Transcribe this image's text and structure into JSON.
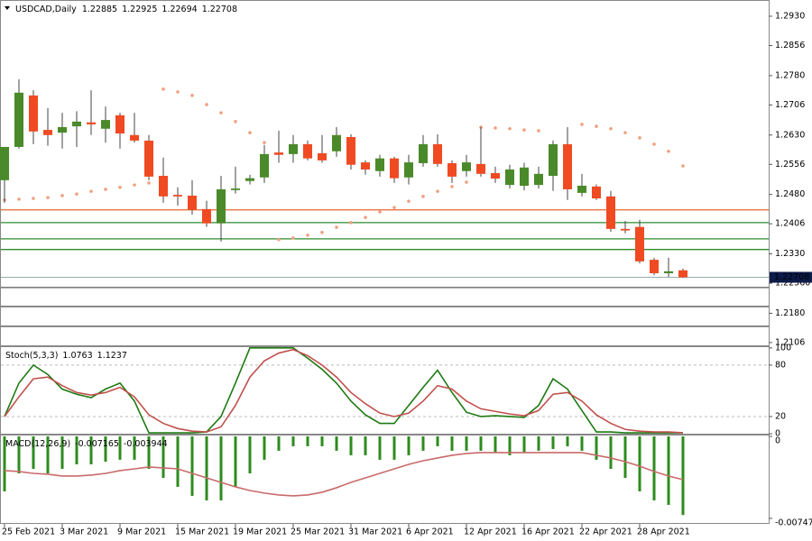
{
  "chart_data": [
    {
      "type": "candlestick",
      "title": "USDCAD,Daily",
      "categories": [
        "25 Feb 2021",
        null,
        null,
        null,
        "3 Mar 2021",
        null,
        null,
        null,
        "9 Mar 2021",
        null,
        null,
        null,
        "15 Mar 2021",
        null,
        null,
        null,
        "19 Mar 2021",
        null,
        null,
        null,
        "25 Mar 2021",
        null,
        null,
        null,
        "31 Mar 2021",
        null,
        null,
        null,
        "6 Apr 2021",
        null,
        null,
        null,
        "12 Apr 2021",
        null,
        null,
        null,
        "16 Apr 2021",
        null,
        null,
        null,
        "22 Apr 2021",
        null,
        null,
        null,
        "28 Apr 2021",
        null,
        null,
        null
      ],
      "open": [
        1.2516,
        1.26,
        1.273,
        1.2643,
        1.2636,
        1.2652,
        1.2662,
        1.2646,
        1.268,
        1.263,
        1.2616,
        1.2527,
        1.2479,
        1.2477,
        1.2443,
        1.2407,
        1.2491,
        1.2514,
        1.2523,
        1.2586,
        1.2582,
        1.2607,
        1.2584,
        1.2589,
        1.2625,
        1.2561,
        1.2539,
        1.2571,
        1.2523,
        1.2559,
        1.2607,
        1.2559,
        1.2539,
        1.2557,
        1.2534,
        1.2504,
        1.2502,
        1.2504,
        1.2527,
        1.2607,
        1.2484,
        1.25,
        1.2475,
        1.2393,
        1.2398,
        1.2315,
        1.2281,
        1.22885
      ],
      "high": [
        1.26,
        1.2771,
        1.2743,
        1.2698,
        1.2686,
        1.269,
        1.2743,
        1.2702,
        1.2686,
        1.2686,
        1.263,
        1.2573,
        1.2498,
        1.2516,
        1.2464,
        1.2527,
        1.255,
        1.253,
        1.2605,
        1.2641,
        1.263,
        1.2616,
        1.263,
        1.265,
        1.2632,
        1.2566,
        1.258,
        1.2575,
        1.258,
        1.263,
        1.2632,
        1.2566,
        1.258,
        1.265,
        1.255,
        1.2555,
        1.256,
        1.255,
        1.2616,
        1.265,
        1.2532,
        1.2505,
        1.2489,
        1.2413,
        1.2416,
        1.232,
        1.232,
        1.22925
      ],
      "low": [
        1.2459,
        1.2596,
        1.2607,
        1.2603,
        1.2596,
        1.26,
        1.263,
        1.2611,
        1.2596,
        1.2611,
        1.2516,
        1.2459,
        1.2452,
        1.2429,
        1.2398,
        1.2361,
        1.2482,
        1.2505,
        1.2509,
        1.256,
        1.256,
        1.2566,
        1.256,
        1.2575,
        1.2543,
        1.253,
        1.2525,
        1.2509,
        1.2505,
        1.255,
        1.255,
        1.2509,
        1.2525,
        1.2525,
        1.2509,
        1.2495,
        1.249,
        1.2495,
        1.2489,
        1.2466,
        1.2475,
        1.2466,
        1.2386,
        1.2382,
        1.2306,
        1.2276,
        1.2272,
        1.22694
      ],
      "close": [
        1.26,
        1.2737,
        1.2639,
        1.263,
        1.265,
        1.2664,
        1.2657,
        1.2668,
        1.2634,
        1.2616,
        1.2525,
        1.2475,
        1.2475,
        1.2441,
        1.2407,
        1.2493,
        1.2495,
        1.2521,
        1.2582,
        1.258,
        1.2607,
        1.2571,
        1.2566,
        1.263,
        1.2555,
        1.2543,
        1.2571,
        1.2521,
        1.2561,
        1.2607,
        1.2557,
        1.2525,
        1.2561,
        1.2532,
        1.252,
        1.2543,
        1.2548,
        1.2532,
        1.2607,
        1.2493,
        1.2502,
        1.247,
        1.2393,
        1.2389,
        1.2311,
        1.2281,
        1.2286,
        1.22708
      ],
      "up_color": "#4a8a2a",
      "down_color": "#f04a23",
      "sar": {
        "color": "#f0a080",
        "values": [
          1.2466,
          1.2468,
          1.247,
          1.2472,
          1.2477,
          1.2481,
          1.2488,
          1.2493,
          1.2498,
          1.2504,
          1.2509,
          1.2746,
          1.2739,
          1.273,
          1.2707,
          1.2686,
          1.2664,
          1.2636,
          1.2611,
          1.2366,
          1.237,
          1.2377,
          1.2384,
          1.2397,
          1.2409,
          1.2422,
          1.2436,
          1.2447,
          1.2463,
          1.2475,
          1.2488,
          1.25,
          1.2511,
          1.265,
          1.2648,
          1.2646,
          1.2643,
          1.2641,
          null,
          null,
          1.2657,
          1.2652,
          1.2646,
          1.2636,
          1.2623,
          1.2607,
          1.2589,
          1.2552
        ]
      },
      "levels": [
        {
          "value": 1.2441,
          "color": "#e8692a"
        },
        {
          "value": 1.2409,
          "color": "#2e8b2e"
        },
        {
          "value": 1.2368,
          "color": "#2e8b2e"
        },
        {
          "value": 1.2341,
          "color": "#2e8b2e"
        },
        {
          "value": 1.2245,
          "color": "#555555"
        },
        {
          "value": 1.2197,
          "color": "#555555"
        },
        {
          "value": 1.2147,
          "color": "#555555"
        }
      ],
      "ylim": [
        1.2099,
        1.2971
      ],
      "yticks": [
        {
          "value": 1.293,
          "label": "1.2930"
        },
        1.2856,
        {
          "value": 1.278,
          "label": "1.2780"
        },
        1.2706,
        {
          "value": 1.263,
          "label": "1.2630"
        },
        1.2556,
        {
          "value": 1.248,
          "label": "1.2480"
        },
        1.2406,
        {
          "value": 1.233,
          "label": "1.2330"
        },
        {
          "value": 1.2256,
          "label": "1.22560"
        },
        {
          "value": 1.218,
          "label": "1.2180"
        },
        1.2106
      ]
    },
    {
      "type": "line",
      "title": "Stoch(5,3,3)",
      "series": [
        {
          "color": "#1d7a12",
          "values": [
            20,
            59,
            80,
            69,
            52,
            46,
            42,
            52,
            59,
            38,
            1,
            1,
            1,
            1,
            2,
            20,
            59,
            100,
            100,
            100,
            100,
            88,
            75,
            59,
            38,
            22,
            12,
            12,
            33,
            54,
            74,
            48,
            25,
            20,
            21,
            20,
            19,
            33,
            64,
            52,
            27,
            2,
            2,
            1,
            1,
            1,
            1,
            1.0763
          ]
        },
        {
          "color": "#c0504d",
          "values": [
            20,
            43,
            64,
            66,
            56,
            48,
            45,
            48,
            54,
            43,
            22,
            12,
            6,
            3,
            2,
            8,
            33,
            66,
            85,
            94,
            98,
            91,
            80,
            66,
            48,
            35,
            24,
            20,
            24,
            38,
            56,
            52,
            38,
            29,
            26,
            23,
            21,
            27,
            46,
            48,
            38,
            22,
            12,
            5,
            3,
            2,
            2,
            1.1237
          ]
        }
      ],
      "levels": [
        20,
        80
      ],
      "ylim": [
        0,
        103
      ],
      "yticks": [
        0,
        20,
        80,
        100
      ]
    },
    {
      "type": "bar_line",
      "title": "MACD(12,26,9)",
      "series": [
        {
          "kind": "bar",
          "color": "#2e8b1e",
          "values": [
            -0.00501,
            -0.00337,
            -0.00296,
            -0.00337,
            -0.00296,
            -0.00255,
            -0.00255,
            -0.0023,
            -0.00213,
            -0.00213,
            -0.00296,
            -0.00378,
            -0.0046,
            -0.00542,
            -0.00583,
            -0.00583,
            -0.0046,
            -0.00337,
            -0.00213,
            -0.00131,
            -0.0009,
            -0.0009,
            -0.0009,
            -0.00131,
            -0.00172,
            -0.00172,
            -0.00213,
            -0.00213,
            -0.00172,
            -0.00131,
            -0.0009,
            -0.00131,
            -0.00131,
            -0.00131,
            -0.00148,
            -0.00172,
            -0.00148,
            -0.00131,
            -0.00115,
            -0.0009,
            -0.00131,
            -0.00213,
            -0.00296,
            -0.00378,
            -0.00501,
            -0.00583,
            -0.00624,
            -0.007165
          ]
        },
        {
          "kind": "line",
          "color": "#c96a6a",
          "values": [
            -0.00312,
            -0.0032,
            -0.00337,
            -0.00345,
            -0.00361,
            -0.00361,
            -0.00353,
            -0.00337,
            -0.00312,
            -0.00296,
            -0.00279,
            -0.00287,
            -0.00296,
            -0.00337,
            -0.00378,
            -0.00419,
            -0.0046,
            -0.00493,
            -0.00517,
            -0.00534,
            -0.00542,
            -0.00534,
            -0.00509,
            -0.00468,
            -0.00419,
            -0.00378,
            -0.00337,
            -0.00296,
            -0.00255,
            -0.00222,
            -0.00197,
            -0.00172,
            -0.00156,
            -0.00148,
            -0.00148,
            -0.00148,
            -0.00148,
            -0.00148,
            -0.00148,
            -0.00148,
            -0.00148,
            -0.00172,
            -0.00197,
            -0.0023,
            -0.00271,
            -0.0032,
            -0.00361,
            -0.003944
          ]
        }
      ],
      "ylim": [
        -0.00789,
        8e-05
      ],
      "yticks": [
        0,
        -0.007473
      ]
    }
  ]
}
